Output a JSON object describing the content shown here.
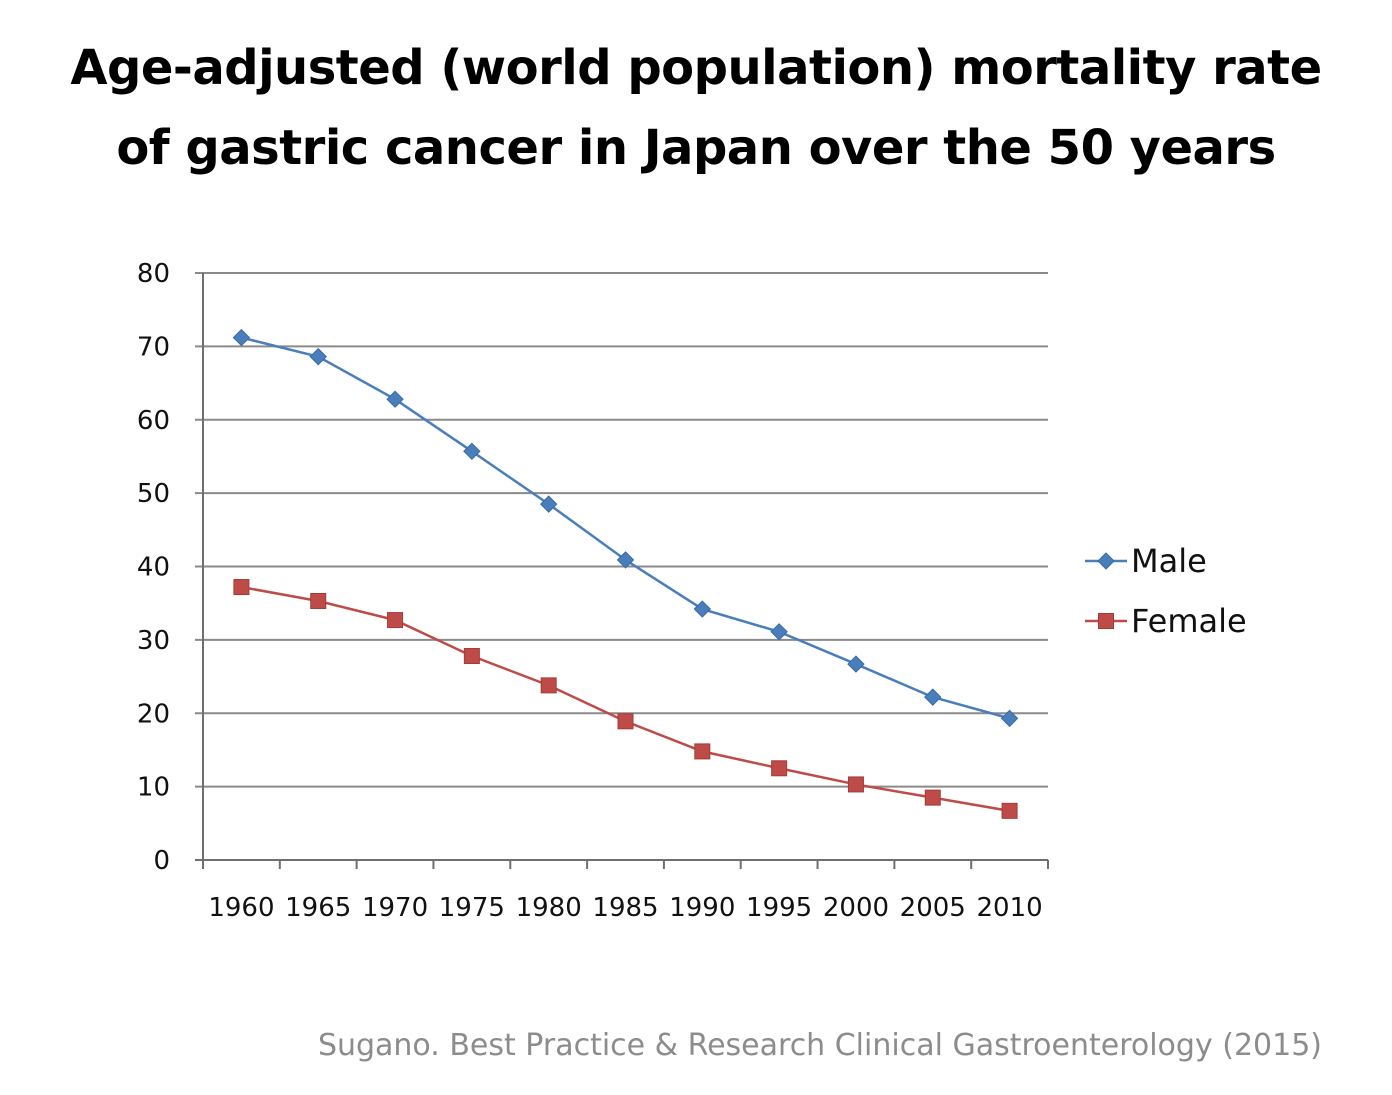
{
  "slide": {
    "title_line1": "Age-adjusted (world population) mortality rate",
    "title_line2": "of gastric cancer in Japan over the 50 years",
    "citation": "Sugano. Best Practice & Research Clinical Gastroenterology (2015)"
  },
  "chart_data": {
    "type": "line",
    "title": "",
    "xlabel": "",
    "ylabel": "",
    "categories": [
      "1960",
      "1965",
      "1970",
      "1975",
      "1980",
      "1985",
      "1990",
      "1995",
      "2000",
      "2005",
      "2010"
    ],
    "y_ticks": [
      "0",
      "10",
      "20",
      "30",
      "40",
      "50",
      "60",
      "70",
      "80"
    ],
    "ylim": [
      0,
      80
    ],
    "grid": true,
    "legend_position": "right",
    "series": [
      {
        "name": "Male",
        "color": "#4a7ebb",
        "marker": "diamond",
        "values": [
          71.2,
          68.6,
          62.8,
          55.7,
          48.5,
          40.9,
          34.2,
          31.1,
          26.7,
          22.2,
          19.3
        ]
      },
      {
        "name": "Female",
        "color": "#be4b48",
        "marker": "square",
        "values": [
          37.2,
          35.3,
          32.7,
          27.8,
          23.8,
          18.9,
          14.8,
          12.5,
          10.3,
          8.5,
          6.7
        ]
      }
    ]
  }
}
